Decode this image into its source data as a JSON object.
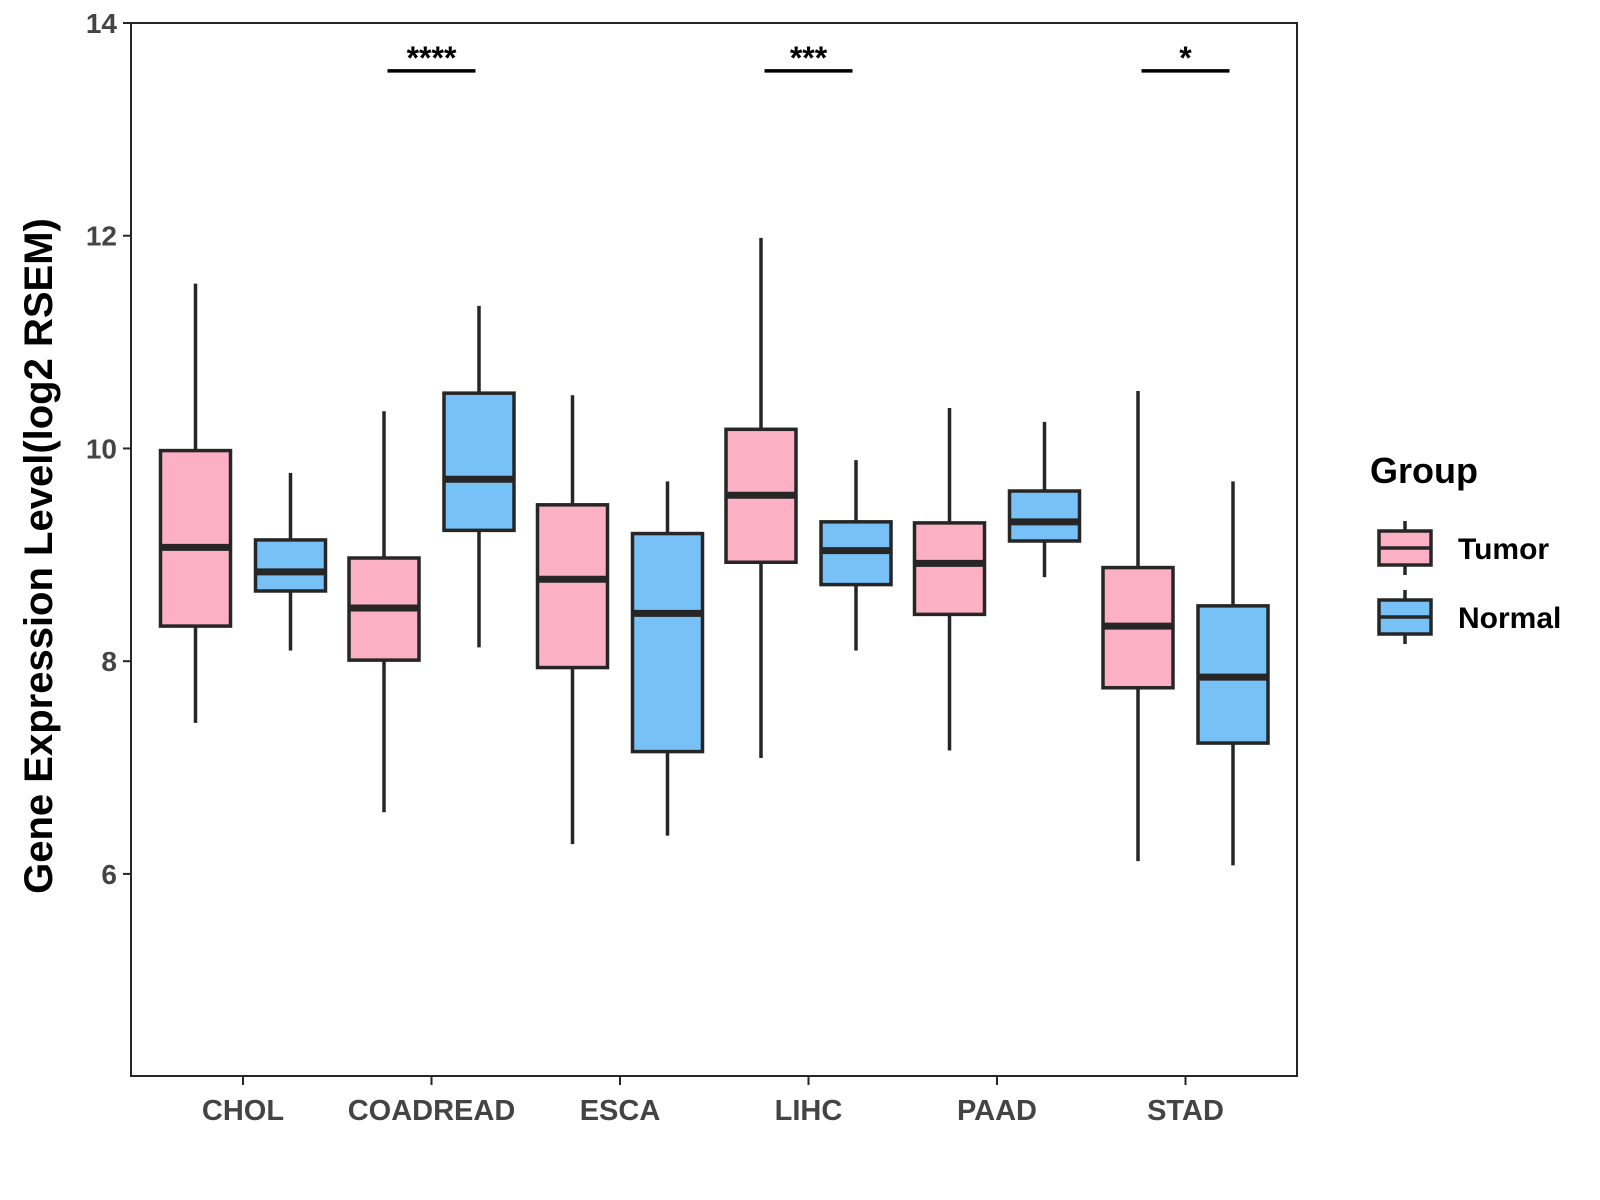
{
  "chart_data": {
    "type": "boxplot",
    "title": "",
    "xlabel": "",
    "ylabel": "Gene Expression Level(log2 RSEM)",
    "ylim": [
      4.1,
      14.0
    ],
    "yticks": [
      6,
      8,
      10,
      12,
      14
    ],
    "grid": false,
    "categories": [
      "CHOL",
      "COADREAD",
      "ESCA",
      "LIHC",
      "PAAD",
      "STAD"
    ],
    "legend": {
      "title": "Group",
      "position": "right",
      "entries": [
        "Tumor",
        "Normal"
      ]
    },
    "series": [
      {
        "name": "Tumor",
        "color": "#FBB1C3",
        "boxes": [
          {
            "min": 7.42,
            "q1": 8.33,
            "median": 9.07,
            "q3": 9.98,
            "max": 11.55
          },
          {
            "min": 6.58,
            "q1": 8.01,
            "median": 8.5,
            "q3": 8.97,
            "max": 10.35
          },
          {
            "min": 6.28,
            "q1": 7.94,
            "median": 8.77,
            "q3": 9.47,
            "max": 10.5
          },
          {
            "min": 7.09,
            "q1": 8.93,
            "median": 9.56,
            "q3": 10.18,
            "max": 11.98
          },
          {
            "min": 7.16,
            "q1": 8.44,
            "median": 8.92,
            "q3": 9.3,
            "max": 10.38
          },
          {
            "min": 6.12,
            "q1": 7.75,
            "median": 8.33,
            "q3": 8.88,
            "max": 10.54
          }
        ]
      },
      {
        "name": "Normal",
        "color": "#78C1F6",
        "boxes": [
          {
            "min": 8.1,
            "q1": 8.66,
            "median": 8.84,
            "q3": 9.14,
            "max": 9.77
          },
          {
            "min": 8.13,
            "q1": 9.23,
            "median": 9.71,
            "q3": 10.52,
            "max": 11.34
          },
          {
            "min": 6.36,
            "q1": 7.15,
            "median": 8.45,
            "q3": 9.2,
            "max": 9.69
          },
          {
            "min": 8.1,
            "q1": 8.72,
            "median": 9.04,
            "q3": 9.31,
            "max": 9.89
          },
          {
            "min": 8.79,
            "q1": 9.13,
            "median": 9.31,
            "q3": 9.6,
            "max": 10.25
          },
          {
            "min": 6.08,
            "q1": 7.23,
            "median": 7.85,
            "q3": 8.52,
            "max": 9.69
          }
        ]
      }
    ],
    "annotations": [
      {
        "category": "COADREAD",
        "label": "****",
        "y": 13.55
      },
      {
        "category": "LIHC",
        "label": "***",
        "y": 13.55
      },
      {
        "category": "STAD",
        "label": "*",
        "y": 13.55
      }
    ]
  }
}
